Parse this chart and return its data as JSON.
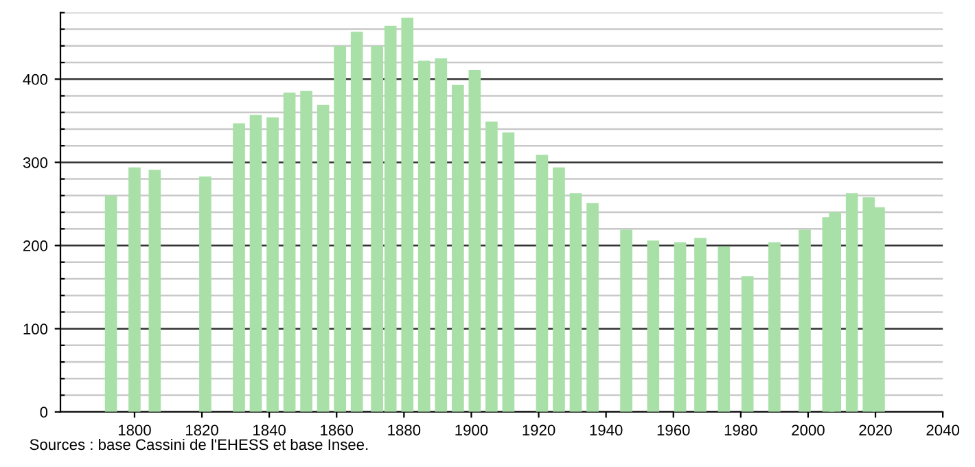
{
  "chart_data": {
    "type": "bar",
    "x": [
      1793,
      1800,
      1806,
      1821,
      1831,
      1836,
      1841,
      1846,
      1851,
      1856,
      1861,
      1866,
      1872,
      1876,
      1881,
      1886,
      1891,
      1896,
      1901,
      1906,
      1911,
      1921,
      1926,
      1931,
      1936,
      1946,
      1954,
      1962,
      1968,
      1975,
      1982,
      1990,
      1999,
      2006,
      2008,
      2013,
      2018,
      2021
    ],
    "values": [
      260,
      294,
      291,
      283,
      347,
      357,
      354,
      384,
      386,
      369,
      440,
      457,
      440,
      464,
      474,
      422,
      425,
      393,
      411,
      349,
      336,
      309,
      294,
      263,
      251,
      219,
      206,
      204,
      209,
      199,
      163,
      204,
      219,
      234,
      240,
      263,
      258,
      246
    ],
    "color": "#a8e0a8",
    "xlim": [
      1778,
      2040
    ],
    "xticks": [
      1800,
      1820,
      1840,
      1860,
      1880,
      1900,
      1920,
      1940,
      1960,
      1980,
      2000,
      2020,
      2040
    ],
    "ylim": [
      0,
      480
    ],
    "yticks": [
      0,
      100,
      200,
      300,
      400
    ],
    "grid": "y",
    "annotations": [
      "Sources : base Cassini de l'EHESS et base Insee."
    ]
  }
}
